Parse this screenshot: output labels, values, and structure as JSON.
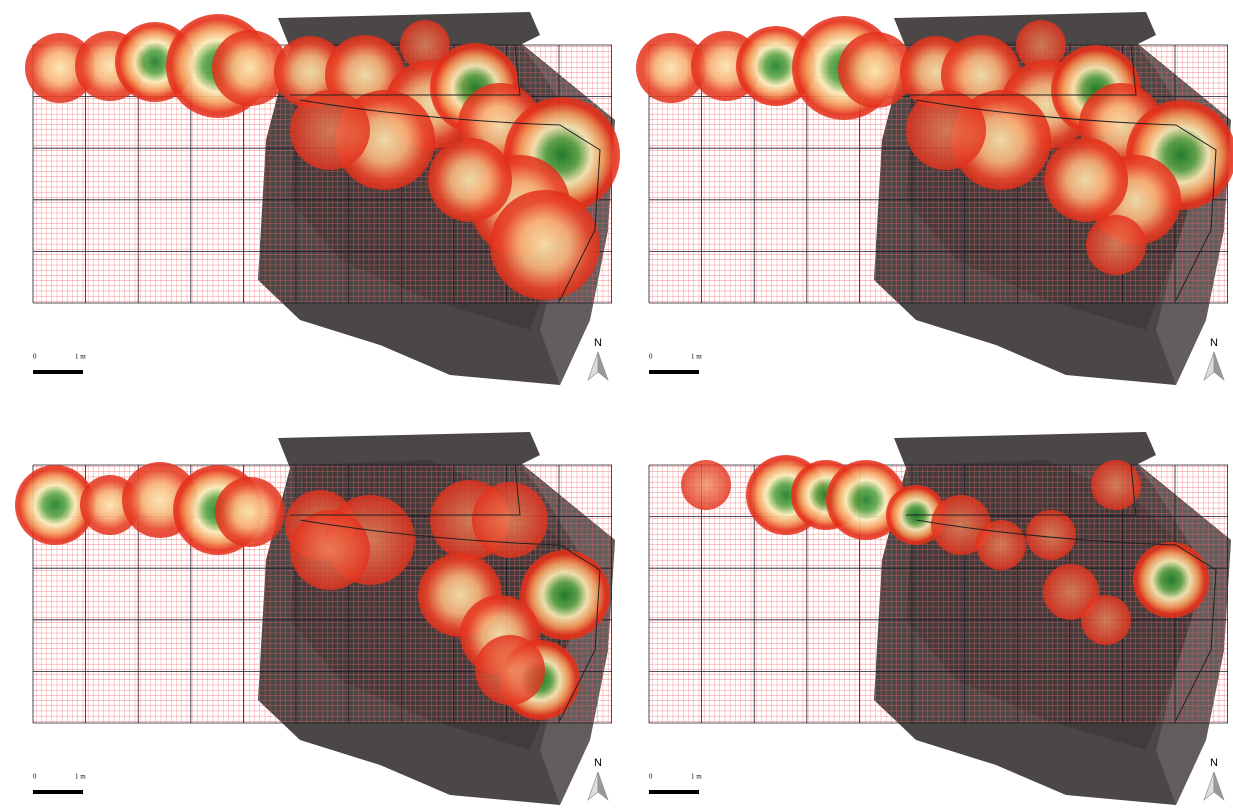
{
  "panels": [
    {
      "scale_start": "0",
      "scale_end": "1 m",
      "north": "N"
    },
    {
      "scale_start": "0",
      "scale_end": "1 m",
      "north": "N"
    },
    {
      "scale_start": "0",
      "scale_end": "1 m",
      "north": "N"
    },
    {
      "scale_start": "0",
      "scale_end": "1 m",
      "north": "N"
    }
  ]
}
